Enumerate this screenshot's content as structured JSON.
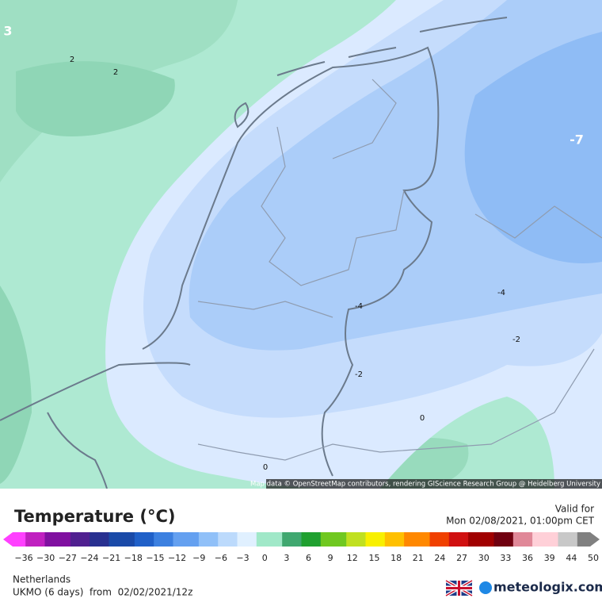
{
  "map": {
    "contour_labels": [
      "3",
      "2",
      "2",
      "-7",
      "-4",
      "-4",
      "-2",
      "-2",
      "0",
      "0"
    ],
    "attribution": "Map data © OpenStreetMap contributors, rendering GIScience Research Group @ Heidelberg University"
  },
  "header": {
    "title": "Temperature (°C)",
    "valid_label": "Valid for",
    "valid_time": "Mon 02/08/2021, 01:00pm CET"
  },
  "colorbar": {
    "ticks": [
      "−36",
      "−30",
      "−27",
      "−24",
      "−21",
      "−18",
      "−15",
      "−12",
      "−9",
      "−6",
      "−3",
      "0",
      "3",
      "6",
      "9",
      "12",
      "15",
      "18",
      "21",
      "24",
      "27",
      "30",
      "33",
      "36",
      "39",
      "44",
      "50"
    ]
  },
  "footer": {
    "region": "Netherlands",
    "model": "UKMO (6 days)  from  02/02/2021/12z",
    "brand": "meteologix.com"
  }
}
